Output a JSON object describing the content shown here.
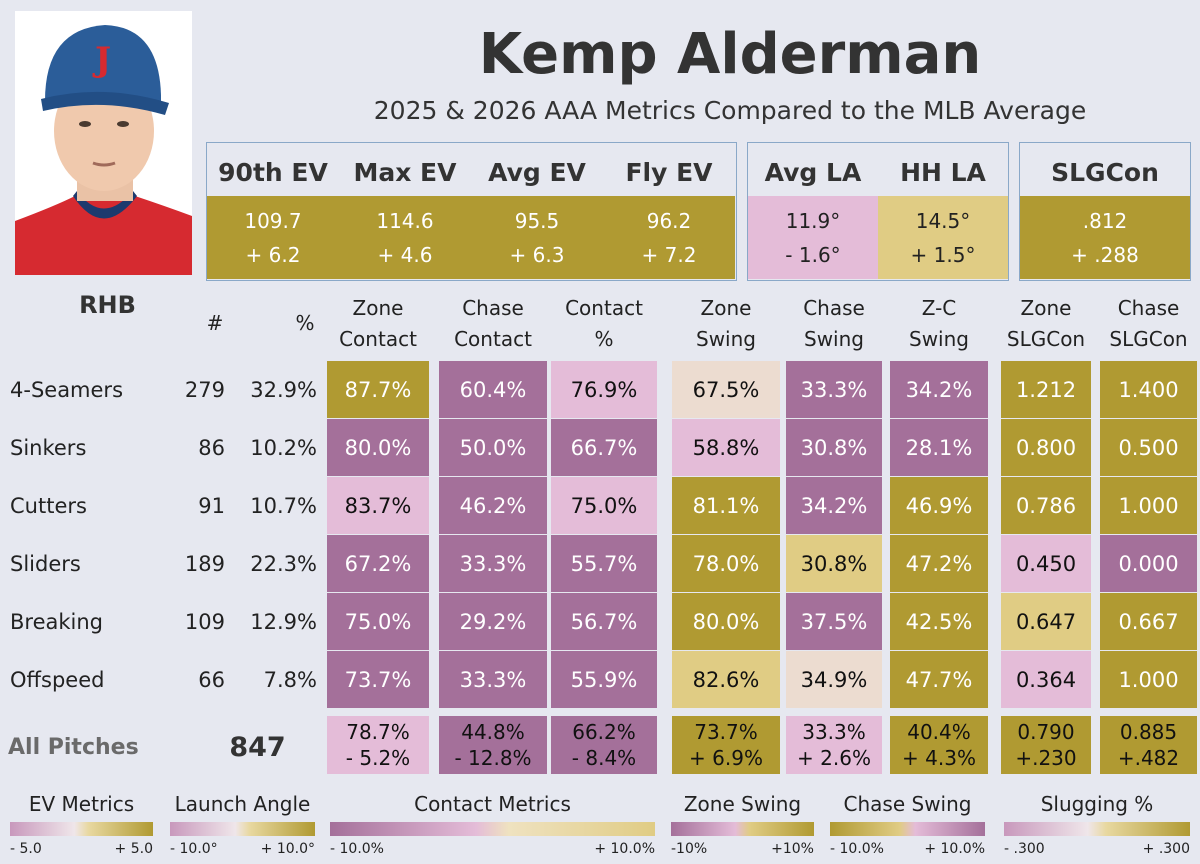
{
  "player": {
    "name": "Kemp Alderman",
    "subtitle": "2025 & 2026 AAA Metrics Compared to the MLB Average",
    "handedness": "RHB"
  },
  "colors": {
    "gold_dark": "#b09a32",
    "gold_light": "#e0cc84",
    "pink_dark": "#a4709a",
    "pink_light": "#e4bcd8",
    "neutral": "#ecdcd0",
    "background": "#e6e8f0"
  },
  "ev_panel": {
    "headers": [
      "90th EV",
      "Max EV",
      "Avg EV",
      "Fly EV"
    ],
    "values": [
      "109.7",
      "114.6",
      "95.5",
      "96.2"
    ],
    "diffs": [
      "+ 6.2",
      "+ 4.6",
      "+ 6.3",
      "+ 7.2"
    ]
  },
  "la_panel": {
    "headers": [
      "Avg LA",
      "HH LA"
    ],
    "values": [
      "11.9°",
      "14.5°"
    ],
    "diffs": [
      "- 1.6°",
      "+ 1.5°"
    ]
  },
  "slg_panel": {
    "headers": [
      "SLGCon"
    ],
    "values": [
      ".812"
    ],
    "diffs": [
      "+ .288"
    ]
  },
  "table": {
    "count_header": "#",
    "pct_header": "%",
    "columns": [
      [
        "Zone",
        "Contact"
      ],
      [
        "Chase",
        "Contact"
      ],
      [
        "Contact",
        "%"
      ],
      [
        "Zone",
        "Swing"
      ],
      [
        "Chase",
        "Swing"
      ],
      [
        "Z-C",
        "Swing"
      ],
      [
        "Zone",
        "SLGCon"
      ],
      [
        "Chase",
        "SLGCon"
      ]
    ],
    "rows": [
      {
        "pitch": "4-Seamers",
        "count": "279",
        "pct": "32.9%",
        "cells": [
          "87.7%",
          "60.4%",
          "76.9%",
          "67.5%",
          "33.3%",
          "34.2%",
          "1.212",
          "1.400"
        ]
      },
      {
        "pitch": "Sinkers",
        "count": "86",
        "pct": "10.2%",
        "cells": [
          "80.0%",
          "50.0%",
          "66.7%",
          "58.8%",
          "30.8%",
          "28.1%",
          "0.800",
          "0.500"
        ]
      },
      {
        "pitch": "Cutters",
        "count": "91",
        "pct": "10.7%",
        "cells": [
          "83.7%",
          "46.2%",
          "75.0%",
          "81.1%",
          "34.2%",
          "46.9%",
          "0.786",
          "1.000"
        ]
      },
      {
        "pitch": "Sliders",
        "count": "189",
        "pct": "22.3%",
        "cells": [
          "67.2%",
          "33.3%",
          "55.7%",
          "78.0%",
          "30.8%",
          "47.2%",
          "0.450",
          "0.000"
        ]
      },
      {
        "pitch": "Breaking",
        "count": "109",
        "pct": "12.9%",
        "cells": [
          "75.0%",
          "29.2%",
          "56.7%",
          "80.0%",
          "37.5%",
          "42.5%",
          "0.647",
          "0.667"
        ]
      },
      {
        "pitch": "Offspeed",
        "count": "66",
        "pct": "7.8%",
        "cells": [
          "73.7%",
          "33.3%",
          "55.9%",
          "82.6%",
          "34.9%",
          "47.7%",
          "0.364",
          "1.000"
        ]
      }
    ],
    "totals": {
      "label": "All Pitches",
      "count": "847",
      "values": [
        "78.7%",
        "44.8%",
        "66.2%",
        "73.7%",
        "33.3%",
        "40.4%",
        "0.790",
        "0.885"
      ],
      "diffs": [
        "- 5.2%",
        "- 12.8%",
        "- 8.4%",
        "+ 6.9%",
        "+ 2.6%",
        "+ 4.3%",
        "+.230",
        "+.482"
      ]
    }
  },
  "legend": [
    {
      "title": "EV Metrics",
      "min": "- 5.0",
      "max": "+ 5.0"
    },
    {
      "title": "Launch Angle",
      "min": "- 10.0°",
      "max": "+ 10.0°"
    },
    {
      "title": "Contact Metrics",
      "min": "- 10.0%",
      "max": "+ 10.0%"
    },
    {
      "title": "Zone Swing",
      "min": "-10%",
      "max": "+10%"
    },
    {
      "title": "Chase Swing",
      "min": "- 10.0%",
      "max": "+ 10.0%"
    },
    {
      "title": "Slugging %",
      "min": "- .300",
      "max": "+ .300"
    }
  ]
}
